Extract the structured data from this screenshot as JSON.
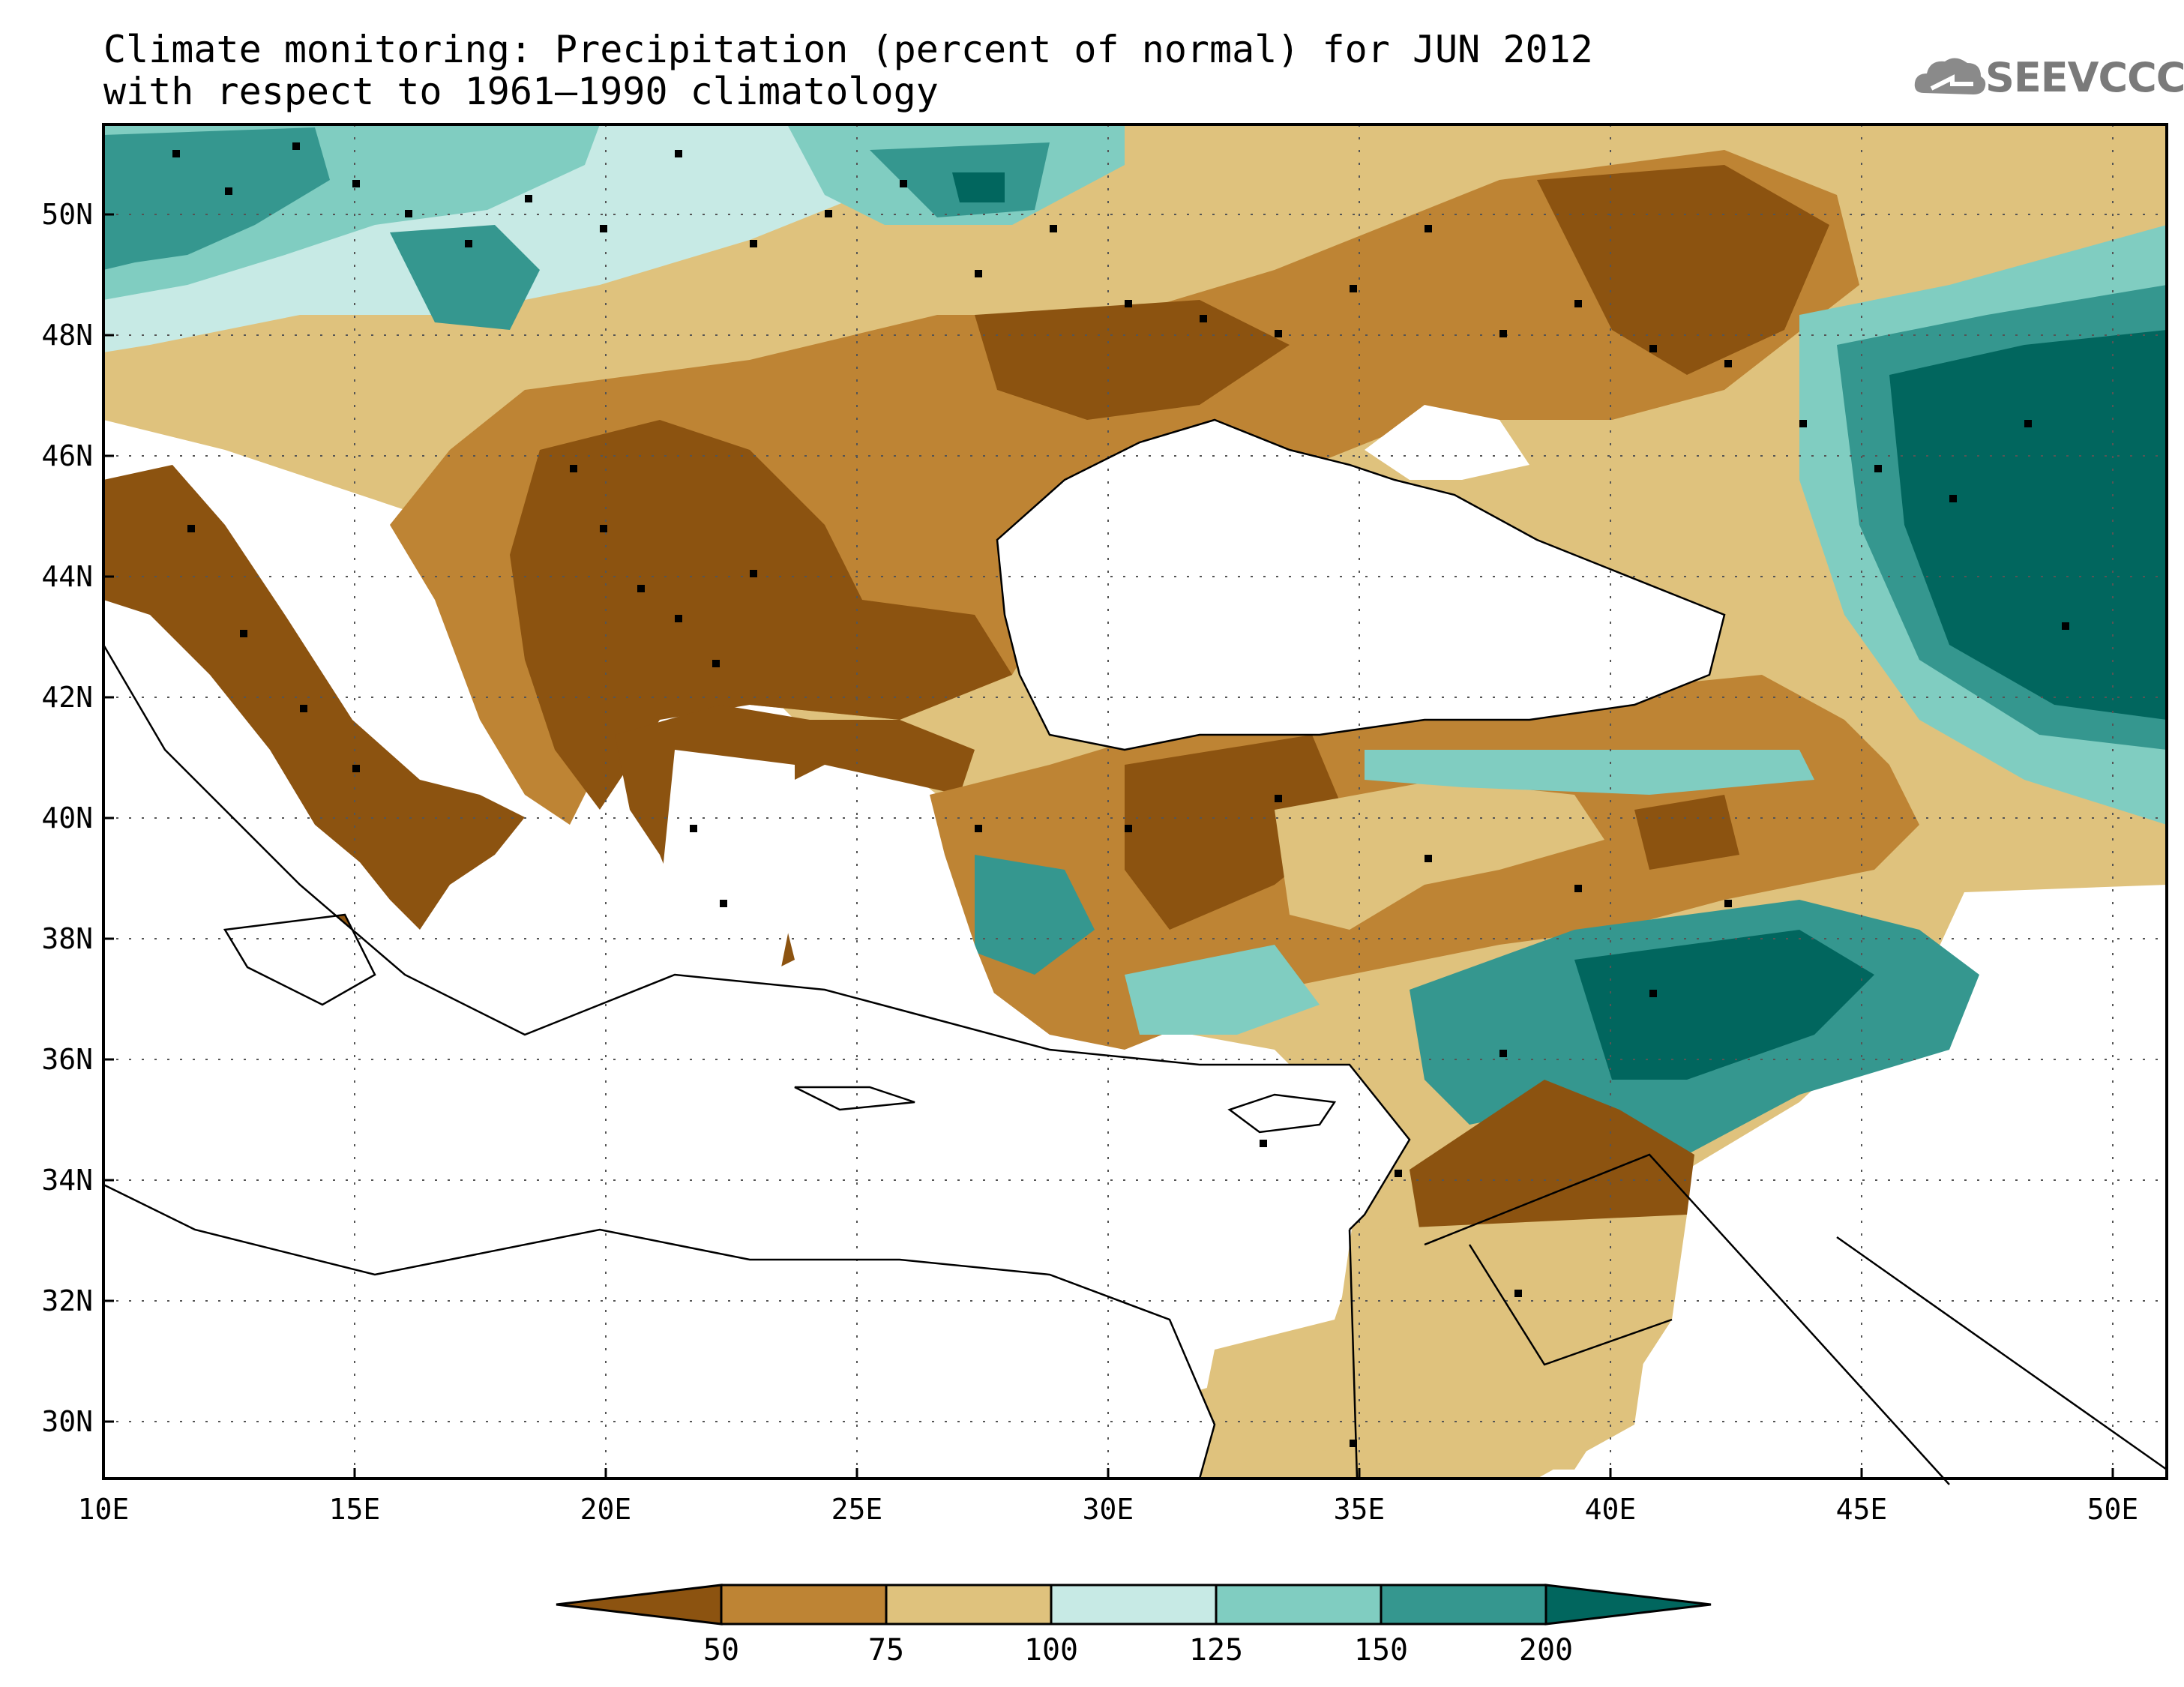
{
  "title": {
    "line1": "Climate monitoring: Precipitation (percent of normal) for JUN 2012",
    "line2": "with respect to 1961–1990 climatology"
  },
  "logo": {
    "text": "SEEVCCC",
    "icon": "cloud-icon"
  },
  "map": {
    "lat_labels": [
      "50N",
      "48N",
      "46N",
      "44N",
      "42N",
      "40N",
      "38N",
      "36N",
      "34N",
      "32N",
      "30N"
    ],
    "lon_labels": [
      "10E",
      "15E",
      "20E",
      "25E",
      "30E",
      "35E",
      "40E",
      "45E",
      "50E"
    ],
    "grid": true,
    "lon_range": [
      10,
      51
    ],
    "lat_range": [
      29,
      51.5
    ]
  },
  "colorbar": {
    "ticks": [
      "50",
      "75",
      "100",
      "125",
      "150",
      "200"
    ],
    "colors": [
      "#8c5310",
      "#be8434",
      "#dfc27d",
      "#c7eae5",
      "#80cdc1",
      "#35978f",
      "#01665e"
    ],
    "ends": "triangular"
  },
  "palette": {
    "deficit_strong": "#8c5310",
    "deficit": "#be8434",
    "below": "#dfc27d",
    "above": "#c7eae5",
    "wet": "#80cdc1",
    "very_wet": "#35978f",
    "extreme_wet": "#01665e",
    "sea": "#ffffff"
  }
}
